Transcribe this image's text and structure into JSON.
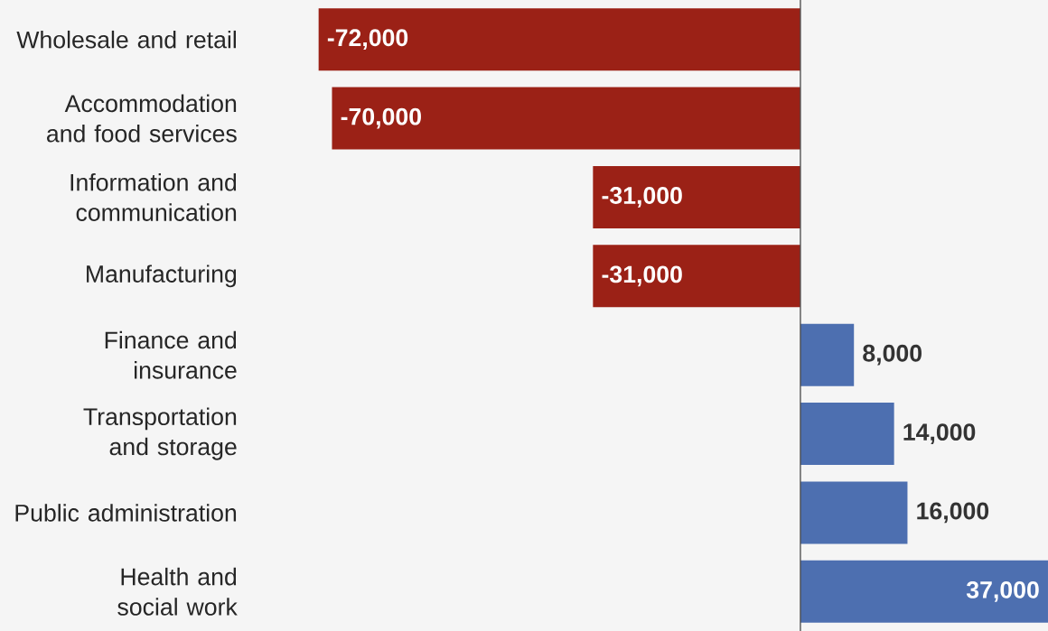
{
  "chart_data": {
    "type": "bar",
    "orientation": "horizontal",
    "categories": [
      "Wholesale and retail",
      "Accommodation and food services",
      "Information and communication",
      "Manufacturing",
      "Finance and insurance",
      "Transportation and storage",
      "Public administration",
      "Health and social work"
    ],
    "values": [
      -72000,
      -70000,
      -31000,
      -31000,
      8000,
      14000,
      16000,
      37000
    ],
    "value_labels": [
      "-72,000",
      "-70,000",
      "-31,000",
      "-31,000",
      "8,000",
      "14,000",
      "16,000",
      "37,000"
    ],
    "colors": [
      "#9b2116",
      "#9b2116",
      "#9b2116",
      "#9b2116",
      "#4d6fb0",
      "#4d6fb0",
      "#4d6fb0",
      "#4d6fb0"
    ],
    "tick_labels": "y",
    "grid": false
  }
}
